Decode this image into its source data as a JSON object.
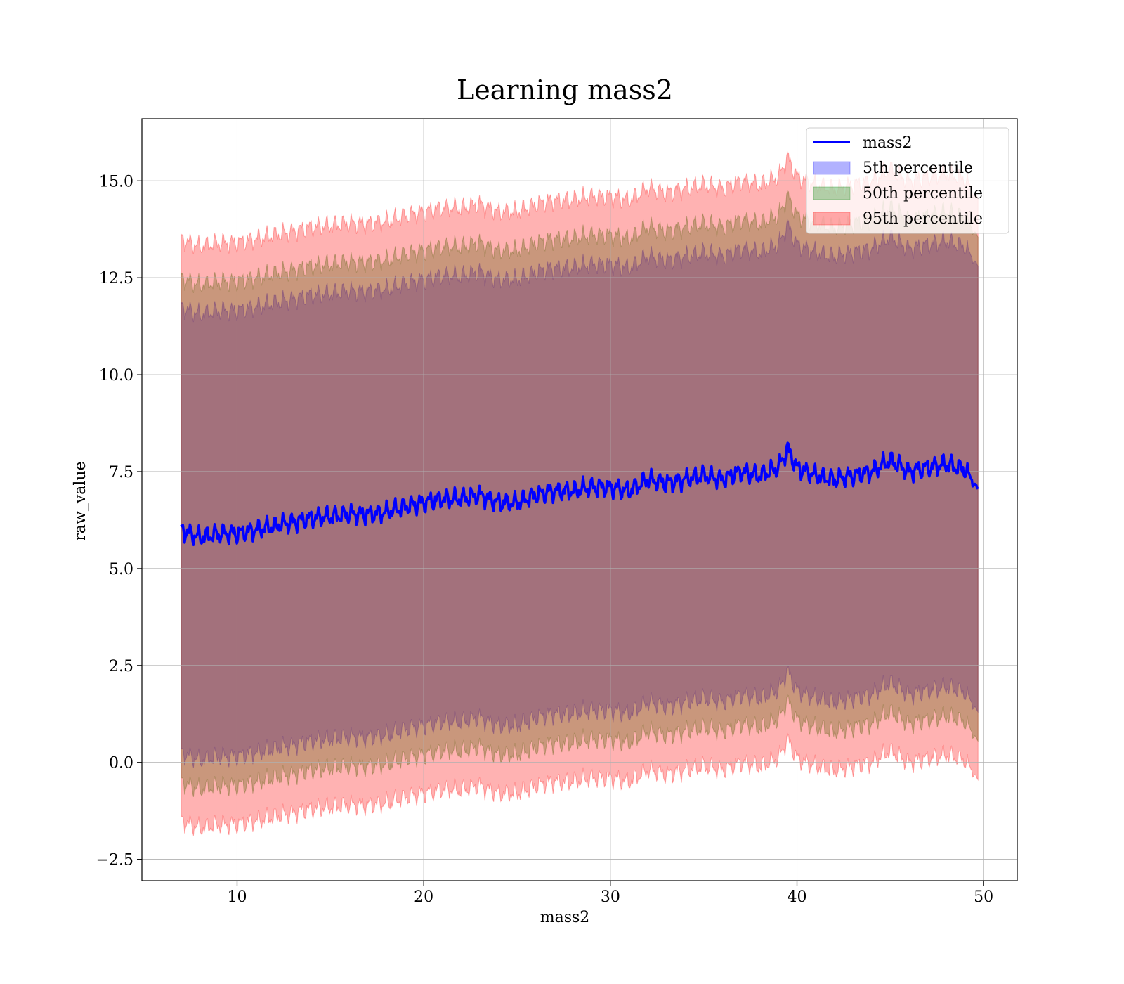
{
  "chart_data": {
    "type": "area",
    "title": "Learning mass2",
    "xlabel": "mass2",
    "ylabel": "raw_value",
    "xlim": [
      4.9,
      51.8
    ],
    "ylim": [
      -3.05,
      16.6
    ],
    "xticks": [
      10,
      20,
      30,
      40,
      50
    ],
    "xtick_labels": [
      "10",
      "20",
      "30",
      "40",
      "50"
    ],
    "yticks": [
      -2.5,
      0.0,
      2.5,
      5.0,
      7.5,
      10.0,
      12.5,
      15.0
    ],
    "ytick_labels": [
      "−2.5",
      "0.0",
      "2.5",
      "5.0",
      "7.5",
      "10.0",
      "12.5",
      "15.0"
    ],
    "grid": true,
    "legend_position": "top-right",
    "x_range": [
      7.0,
      49.7
    ],
    "median": {
      "x": [
        7,
        8,
        9,
        10,
        11,
        12,
        13,
        14,
        15,
        16,
        17,
        18,
        19,
        20,
        21,
        22,
        23,
        24,
        25,
        26,
        27,
        28,
        29,
        30,
        31,
        32,
        33,
        34,
        35,
        36,
        37,
        38,
        39,
        39.5,
        40,
        41,
        42,
        43,
        44,
        45,
        46,
        47,
        48,
        49,
        49.7
      ],
      "y": [
        6.0,
        5.8,
        5.9,
        5.9,
        6.0,
        6.1,
        6.2,
        6.3,
        6.35,
        6.4,
        6.4,
        6.45,
        6.6,
        6.7,
        6.8,
        6.8,
        6.9,
        6.7,
        6.7,
        6.9,
        7.0,
        7.0,
        7.1,
        7.1,
        7.0,
        7.3,
        7.2,
        7.3,
        7.4,
        7.3,
        7.5,
        7.4,
        7.6,
        8.1,
        7.6,
        7.4,
        7.3,
        7.4,
        7.5,
        7.8,
        7.5,
        7.6,
        7.7,
        7.55,
        7.05
      ]
    },
    "series": [
      {
        "name": "mass2",
        "role": "line",
        "color": "#0000ff"
      },
      {
        "name": "5th percentile",
        "role": "band",
        "color": "#0000ff",
        "lower_offset": -5.75,
        "upper_offset": 5.75
      },
      {
        "name": "50th percentile",
        "role": "band",
        "color": "#008000",
        "lower_offset": -6.5,
        "upper_offset": 6.5
      },
      {
        "name": "95th percentile",
        "role": "band",
        "color": "#ff0000",
        "lower_offset": -7.5,
        "upper_offset": 7.5
      }
    ]
  }
}
